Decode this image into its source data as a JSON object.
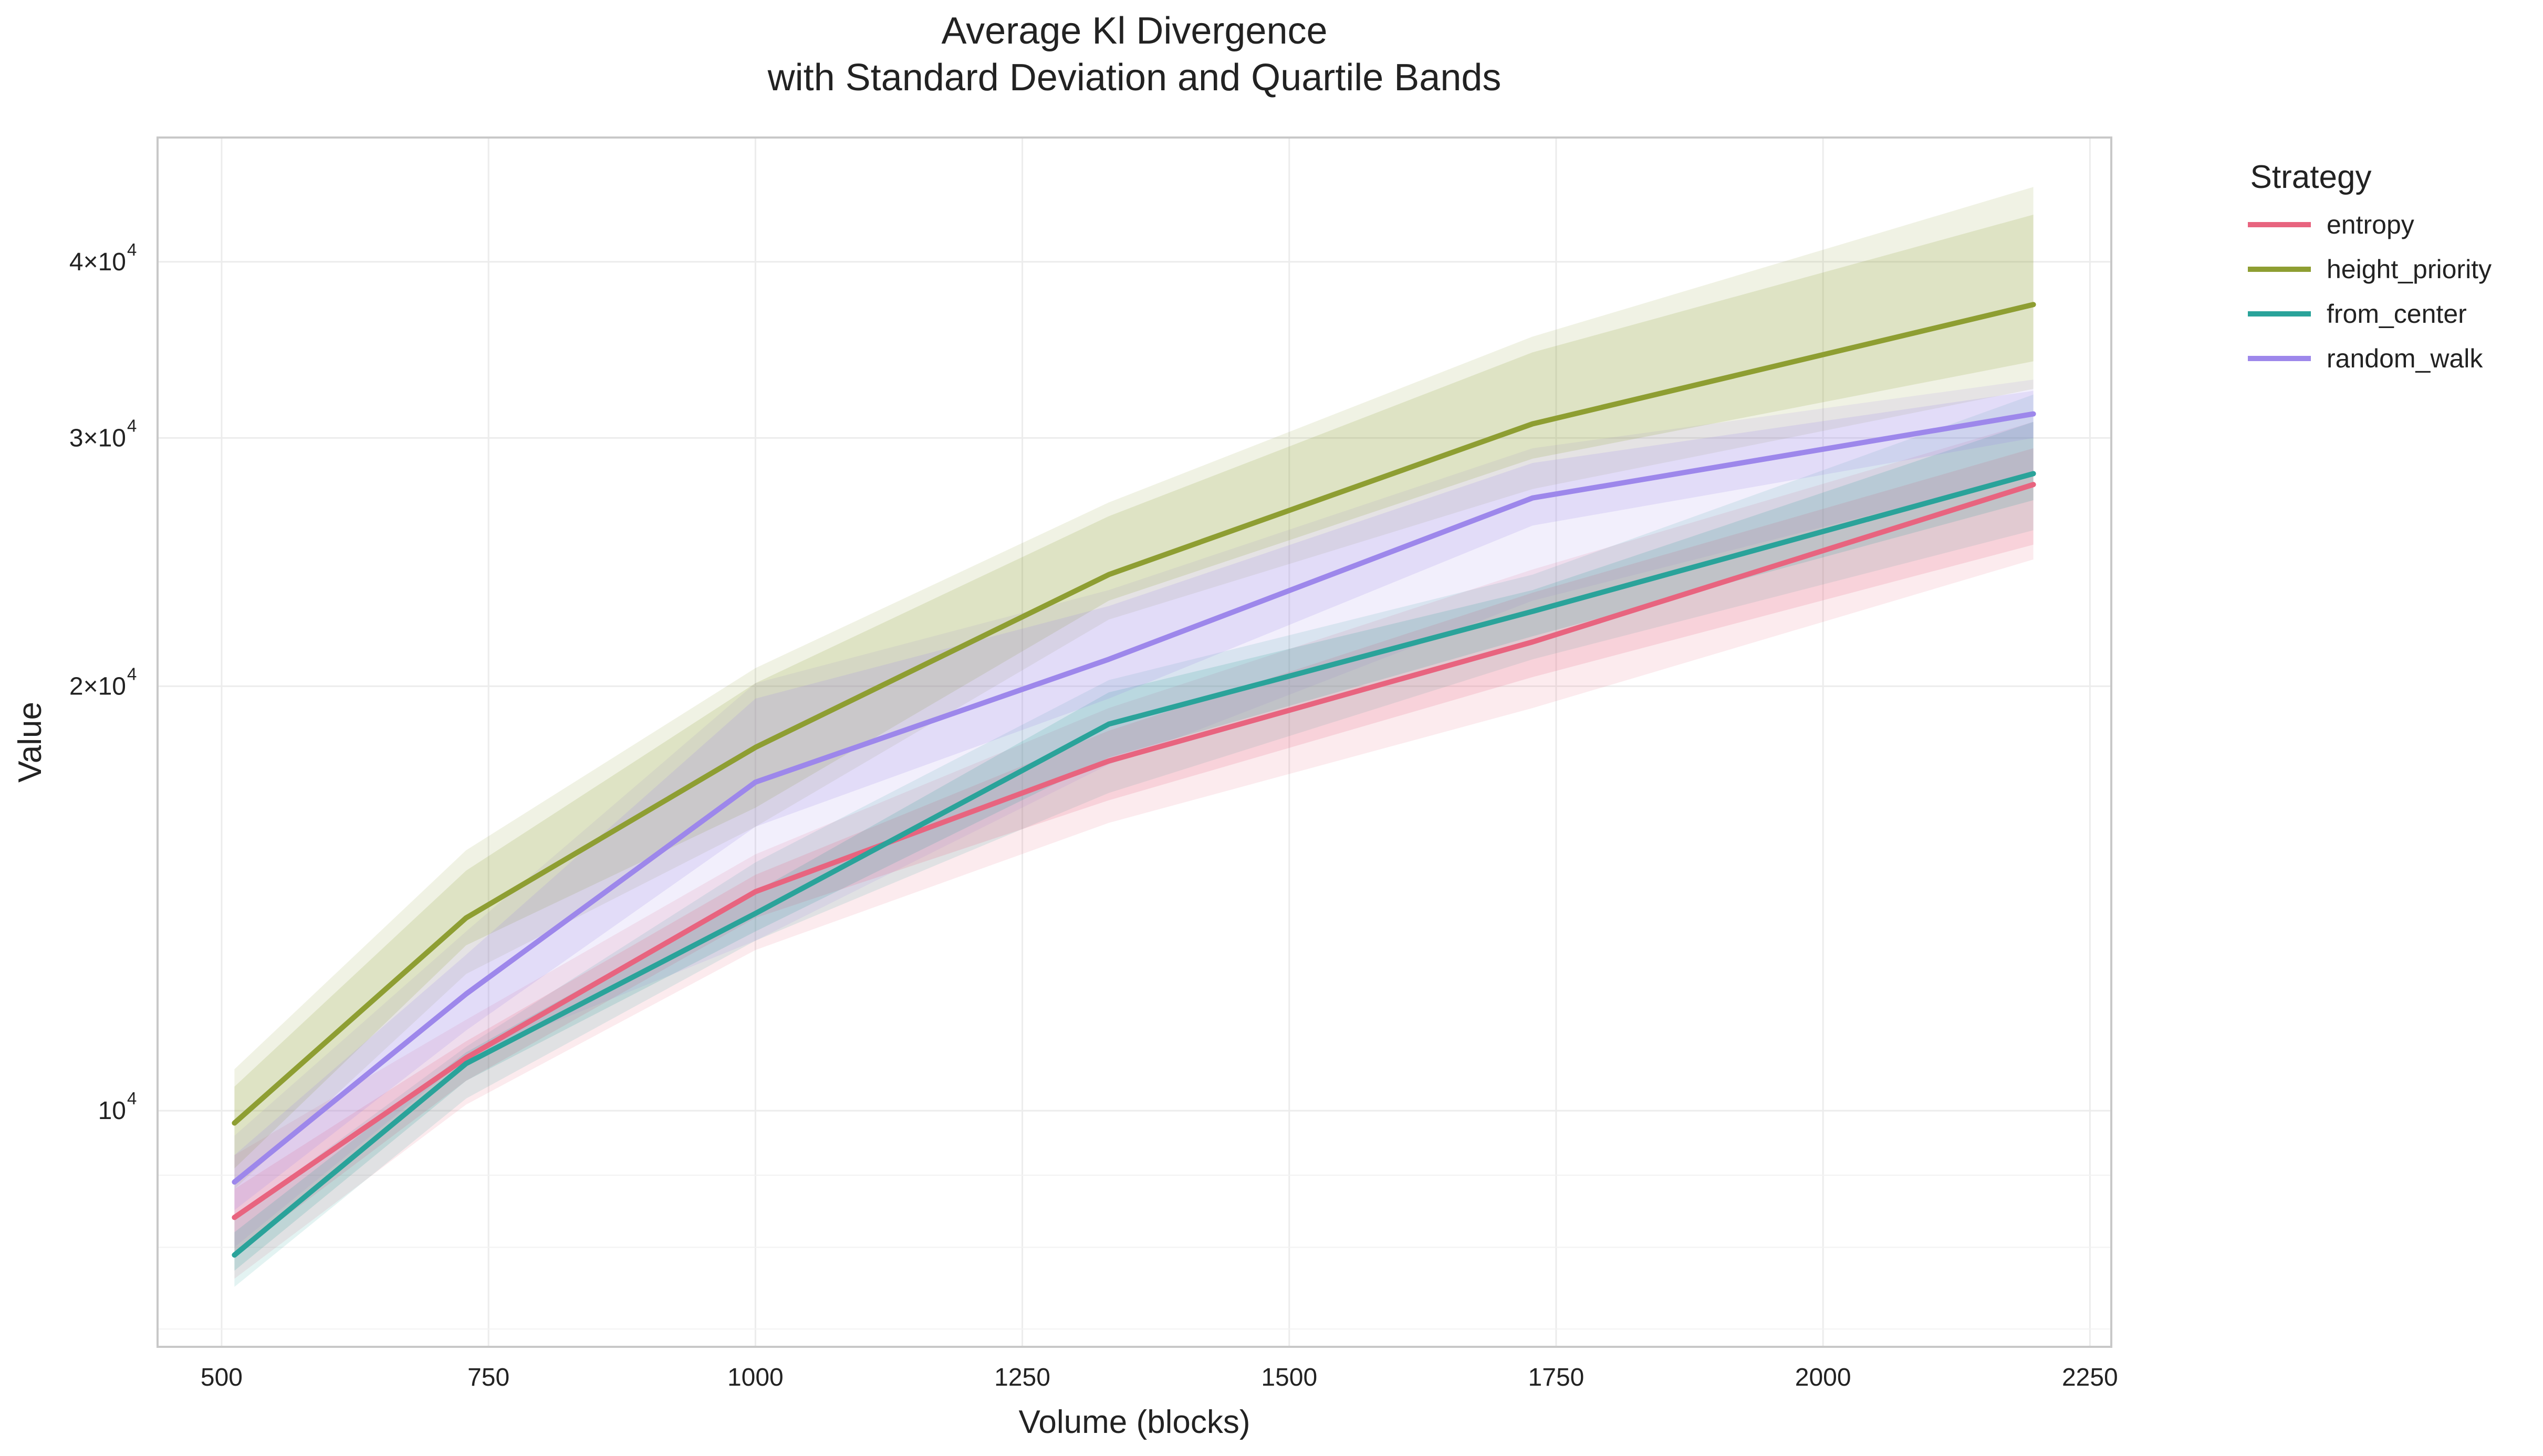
{
  "chart_data": {
    "type": "line",
    "title": "Average Kl Divergence",
    "subtitle": "with Standard Deviation and Quartile Bands",
    "xlabel": "Volume (blocks)",
    "ylabel": "Value",
    "yscale": "log",
    "xlim": [
      440,
      2270
    ],
    "ylim": [
      6800,
      49000
    ],
    "x_ticks": [
      500,
      750,
      1000,
      1250,
      1500,
      1750,
      2000,
      2250
    ],
    "y_ticks": [
      {
        "value": 10000,
        "base": "10",
        "exp": "4"
      },
      {
        "value": 20000,
        "base": "2×10",
        "exp": "4"
      },
      {
        "value": 30000,
        "base": "3×10",
        "exp": "4"
      },
      {
        "value": 40000,
        "base": "4×10",
        "exp": "4"
      }
    ],
    "minor_y_grid": [
      7000,
      8000,
      9000
    ],
    "grid": true,
    "legend": {
      "title": "Strategy",
      "position": "outside right, top"
    },
    "x": [
      512,
      729,
      1000,
      1331,
      1728,
      2197
    ],
    "series": [
      {
        "name": "entropy",
        "color": "#E8647F",
        "values": [
          8400,
          10900,
          14300,
          17700,
          21500,
          27800
        ],
        "std_lower": [
          7600,
          10100,
          13000,
          16000,
          19300,
          24600
        ],
        "std_upper": [
          9300,
          11600,
          15200,
          19300,
          24200,
          30800
        ],
        "q25": [
          7900,
          10500,
          13700,
          16600,
          20300,
          25200
        ],
        "q75": [
          8800,
          11200,
          14700,
          18600,
          23300,
          29500
        ]
      },
      {
        "name": "height_priority",
        "color": "#8E9E32",
        "values": [
          9800,
          13700,
          18100,
          24000,
          30700,
          37300
        ],
        "std_lower": [
          8800,
          12500,
          15900,
          22300,
          27600,
          32500
        ],
        "std_upper": [
          10700,
          15300,
          20600,
          27000,
          35400,
          45200
        ],
        "q25": [
          9100,
          13100,
          16400,
          23000,
          29000,
          34000
        ],
        "q75": [
          10400,
          14800,
          20100,
          26400,
          34500,
          43200
        ]
      },
      {
        "name": "from_center",
        "color": "#2AA39A",
        "values": [
          7900,
          10800,
          13800,
          18800,
          22600,
          28300
        ],
        "std_lower": [
          7500,
          10200,
          13200,
          16800,
          20900,
          25800
        ],
        "std_upper": [
          8400,
          11100,
          15000,
          20200,
          24000,
          32200
        ],
        "q25": [
          7700,
          10500,
          13400,
          17800,
          21700,
          27100
        ],
        "q75": [
          8200,
          11000,
          14300,
          19800,
          23400,
          30800
        ]
      },
      {
        "name": "random_walk",
        "color": "#9D87EB",
        "values": [
          8900,
          12100,
          17100,
          20900,
          27200,
          31200
        ],
        "std_lower": [
          8000,
          10900,
          13200,
          17600,
          23000,
          28300
        ],
        "std_upper": [
          9600,
          13400,
          20100,
          23400,
          29500,
          33000
        ],
        "q25": [
          8500,
          11400,
          15900,
          19600,
          26000,
          30000
        ],
        "q75": [
          9300,
          12900,
          19600,
          22800,
          28800,
          32400
        ]
      }
    ]
  }
}
